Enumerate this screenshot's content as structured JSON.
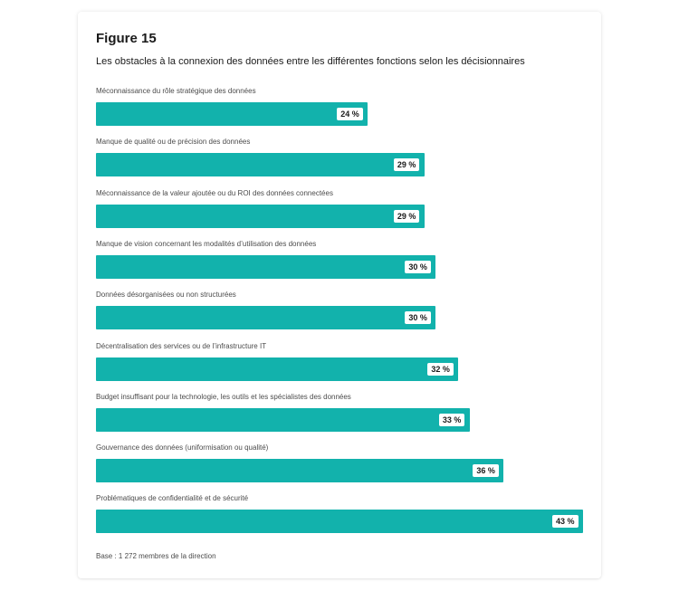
{
  "figure": {
    "title": "Figure 15",
    "subtitle": "Les obstacles à la connexion des données entre les différentes fonctions selon les décisionnaires",
    "base_note": "Base : 1 272 membres de la direction"
  },
  "chart_data": {
    "type": "bar",
    "orientation": "horizontal",
    "title": "Les obstacles à la connexion des données entre les différentes fonctions selon les décisionnaires",
    "categories": [
      "Méconnaissance du rôle stratégique des données",
      "Manque de qualité ou de précision des données",
      "Méconnaissance de la valeur ajoutée ou du ROI des données connectées",
      "Manque de vision concernant les modalités d’utilisation des données",
      "Données désorganisées ou non structurées",
      "Décentralisation des services ou de l’infrastructure IT",
      "Budget insuffisant pour la technologie, les outils et les spécialistes des données",
      "Gouvernance des données (uniformisation ou qualité)",
      "Problématiques de confidentialité et de sécurité"
    ],
    "values": [
      24,
      29,
      29,
      30,
      30,
      32,
      33,
      36,
      43
    ],
    "value_labels": [
      "24 %",
      "29 %",
      "29 %",
      "30 %",
      "30 %",
      "32 %",
      "33 %",
      "36 %",
      "43 %"
    ],
    "unit": "%",
    "xlim": [
      0,
      43
    ],
    "grid": false,
    "bar_color": "#12b2ac"
  }
}
